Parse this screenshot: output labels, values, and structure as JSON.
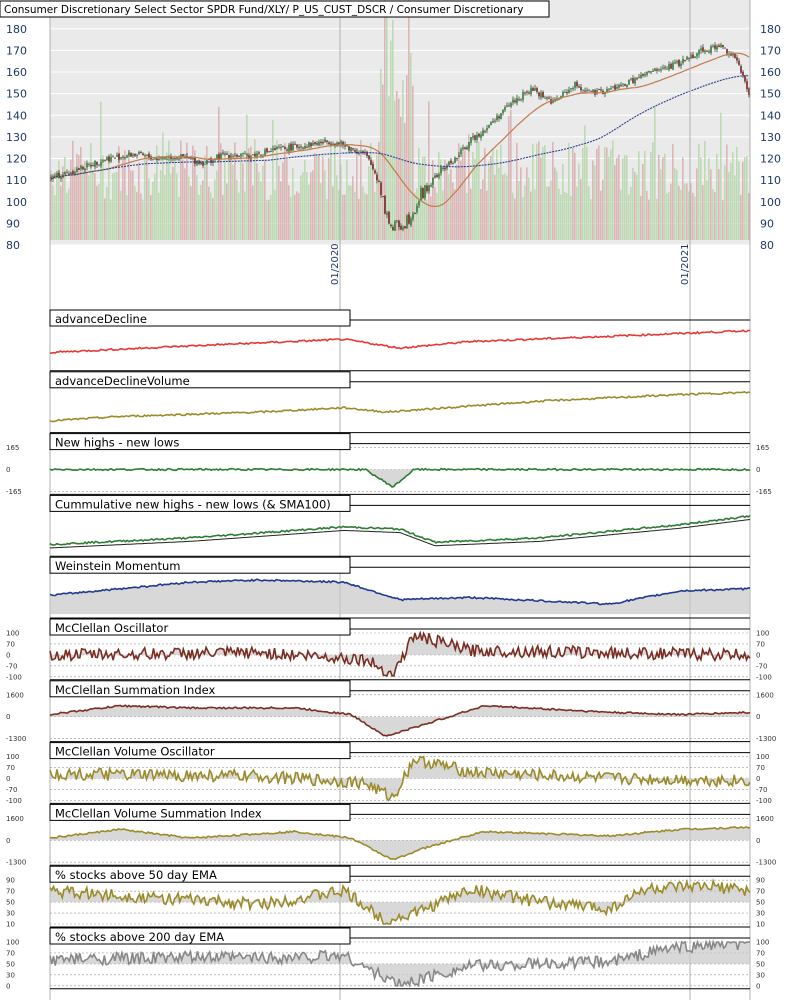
{
  "chart_data": [
    {
      "type": "candlestick",
      "title": "Consumer Discretionary Select Sector SPDR Fund/XLY/ P_US_CUST_DSCR / Consumer Discretionary",
      "ylim": [
        80,
        185
      ],
      "yticks": [
        80,
        90,
        100,
        110,
        120,
        130,
        140,
        150,
        160,
        170,
        180
      ],
      "x_labels": [
        "01/2020",
        "01/2021"
      ],
      "grid": true,
      "price_profile": [
        [
          0,
          111
        ],
        [
          0.03,
          114
        ],
        [
          0.08,
          120
        ],
        [
          0.12,
          122
        ],
        [
          0.15,
          120
        ],
        [
          0.18,
          121
        ],
        [
          0.22,
          118
        ],
        [
          0.25,
          122
        ],
        [
          0.28,
          121
        ],
        [
          0.32,
          124
        ],
        [
          0.36,
          126
        ],
        [
          0.4,
          128
        ],
        [
          0.42,
          126
        ],
        [
          0.45,
          122
        ],
        [
          0.47,
          110
        ],
        [
          0.48,
          95
        ],
        [
          0.49,
          87
        ],
        [
          0.51,
          92
        ],
        [
          0.53,
          103
        ],
        [
          0.56,
          115
        ],
        [
          0.58,
          120
        ],
        [
          0.6,
          128
        ],
        [
          0.63,
          136
        ],
        [
          0.66,
          146
        ],
        [
          0.69,
          152
        ],
        [
          0.72,
          146
        ],
        [
          0.75,
          154
        ],
        [
          0.78,
          150
        ],
        [
          0.82,
          154
        ],
        [
          0.86,
          160
        ],
        [
          0.9,
          164
        ],
        [
          0.93,
          170
        ],
        [
          0.96,
          172
        ],
        [
          0.98,
          167
        ],
        [
          1.0,
          150
        ]
      ],
      "series": [
        {
          "name": "",
          "color": "#2e7d32"
        },
        {
          "name": "",
          "color": "#c47a4a"
        },
        {
          "name": "",
          "color": "#2a3f8f"
        }
      ]
    },
    {
      "type": "line",
      "title": "advanceDecline",
      "color": "#e53935",
      "profile": [
        [
          0,
          0.35
        ],
        [
          0.2,
          0.5
        ],
        [
          0.42,
          0.65
        ],
        [
          0.5,
          0.45
        ],
        [
          0.6,
          0.6
        ],
        [
          0.8,
          0.72
        ],
        [
          1,
          0.85
        ]
      ]
    },
    {
      "type": "line",
      "title": "advanceDeclineVolume",
      "color": "#9c8b2a",
      "profile": [
        [
          0,
          0.2
        ],
        [
          0.1,
          0.3
        ],
        [
          0.3,
          0.4
        ],
        [
          0.42,
          0.5
        ],
        [
          0.48,
          0.4
        ],
        [
          0.55,
          0.48
        ],
        [
          0.7,
          0.65
        ],
        [
          0.9,
          0.8
        ],
        [
          1,
          0.85
        ]
      ]
    },
    {
      "type": "line",
      "title": "New highs - new lows",
      "color": "#2e7d32",
      "yticks": [
        165,
        0,
        -165
      ],
      "profile": [
        [
          0,
          0.5
        ],
        [
          0.45,
          0.5
        ],
        [
          0.49,
          0.1
        ],
        [
          0.52,
          0.5
        ],
        [
          1,
          0.5
        ]
      ]
    },
    {
      "type": "line",
      "title": "Cummulative new highs - new lows (& SMA100)",
      "color": "#2e7d32",
      "profile": [
        [
          0,
          0.2
        ],
        [
          0.2,
          0.35
        ],
        [
          0.42,
          0.6
        ],
        [
          0.5,
          0.55
        ],
        [
          0.55,
          0.25
        ],
        [
          0.7,
          0.35
        ],
        [
          0.9,
          0.65
        ],
        [
          1,
          0.85
        ]
      ]
    },
    {
      "type": "line",
      "title": "Weinstein Momentum",
      "color": "#1f3a8f",
      "profile": [
        [
          0,
          0.45
        ],
        [
          0.1,
          0.6
        ],
        [
          0.2,
          0.75
        ],
        [
          0.3,
          0.8
        ],
        [
          0.42,
          0.75
        ],
        [
          0.5,
          0.35
        ],
        [
          0.6,
          0.4
        ],
        [
          0.8,
          0.25
        ],
        [
          0.9,
          0.55
        ],
        [
          1,
          0.6
        ]
      ]
    },
    {
      "type": "line",
      "title": "McClellan Oscillator",
      "color": "#7a2e22",
      "yticks": [
        100,
        70,
        0,
        -70,
        -100
      ],
      "profile": [
        [
          0,
          0.5
        ],
        [
          0.3,
          0.55
        ],
        [
          0.45,
          0.4
        ],
        [
          0.49,
          0.05
        ],
        [
          0.52,
          0.95
        ],
        [
          0.6,
          0.6
        ],
        [
          0.8,
          0.55
        ],
        [
          1,
          0.5
        ]
      ]
    },
    {
      "type": "line",
      "title": "McClellan Summation Index",
      "color": "#7a2e22",
      "yticks": [
        1600,
        0,
        -1300
      ],
      "profile": [
        [
          0,
          0.55
        ],
        [
          0.1,
          0.75
        ],
        [
          0.2,
          0.7
        ],
        [
          0.35,
          0.7
        ],
        [
          0.43,
          0.55
        ],
        [
          0.48,
          0.05
        ],
        [
          0.53,
          0.3
        ],
        [
          0.62,
          0.75
        ],
        [
          0.8,
          0.6
        ],
        [
          0.9,
          0.55
        ],
        [
          1,
          0.6
        ]
      ]
    },
    {
      "type": "line",
      "title": "McClellan Volume Oscillator",
      "color": "#9c8b2a",
      "yticks": [
        100,
        70,
        0,
        -70,
        -100
      ],
      "profile": [
        [
          0,
          0.6
        ],
        [
          0.3,
          0.55
        ],
        [
          0.45,
          0.4
        ],
        [
          0.49,
          0.05
        ],
        [
          0.52,
          0.95
        ],
        [
          0.6,
          0.65
        ],
        [
          0.8,
          0.5
        ],
        [
          1,
          0.45
        ]
      ]
    },
    {
      "type": "line",
      "title": "McClellan Volume Summation Index",
      "color": "#9c8b2a",
      "yticks": [
        1600,
        0,
        -1300
      ],
      "profile": [
        [
          0,
          0.55
        ],
        [
          0.1,
          0.75
        ],
        [
          0.2,
          0.55
        ],
        [
          0.35,
          0.7
        ],
        [
          0.43,
          0.55
        ],
        [
          0.49,
          0.05
        ],
        [
          0.53,
          0.3
        ],
        [
          0.62,
          0.7
        ],
        [
          0.8,
          0.6
        ],
        [
          0.9,
          0.75
        ],
        [
          1,
          0.8
        ]
      ]
    },
    {
      "type": "line",
      "title": "% stocks above 50 day EMA",
      "color": "#9c8b2a",
      "yticks": [
        90,
        70,
        50,
        30,
        10
      ],
      "profile": [
        [
          0,
          0.75
        ],
        [
          0.2,
          0.55
        ],
        [
          0.3,
          0.45
        ],
        [
          0.42,
          0.75
        ],
        [
          0.48,
          0.05
        ],
        [
          0.53,
          0.3
        ],
        [
          0.6,
          0.8
        ],
        [
          0.7,
          0.5
        ],
        [
          0.8,
          0.35
        ],
        [
          0.85,
          0.8
        ],
        [
          0.95,
          0.85
        ],
        [
          1,
          0.75
        ]
      ]
    },
    {
      "type": "line",
      "title": "% stocks above 200 day EMA",
      "color": "#888888",
      "yticks": [
        100,
        70,
        50,
        30,
        0
      ],
      "profile": [
        [
          0,
          0.6
        ],
        [
          0.2,
          0.65
        ],
        [
          0.35,
          0.65
        ],
        [
          0.42,
          0.7
        ],
        [
          0.47,
          0.25
        ],
        [
          0.5,
          0.02
        ],
        [
          0.55,
          0.25
        ],
        [
          0.6,
          0.45
        ],
        [
          0.8,
          0.55
        ],
        [
          0.88,
          0.85
        ],
        [
          0.95,
          0.95
        ],
        [
          1,
          0.95
        ]
      ]
    }
  ]
}
